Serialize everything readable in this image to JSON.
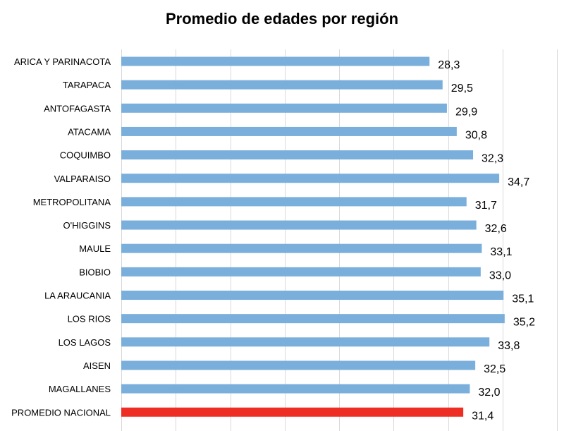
{
  "chart_data": {
    "type": "bar",
    "orientation": "horizontal",
    "title": "Promedio de edades por región",
    "categories": [
      "ARICA Y PARINACOTA",
      "TARAPACA",
      "ANTOFAGASTA",
      "ATACAMA",
      "COQUIMBO",
      "VALPARAISO",
      "METROPOLITANA",
      "O'HIGGINS",
      "MAULE",
      "BIOBIO",
      "LA ARAUCANIA",
      "LOS RIOS",
      "LOS LAGOS",
      "AISEN",
      "MAGALLANES",
      "PROMEDIO NACIONAL"
    ],
    "values": [
      28.3,
      29.5,
      29.9,
      30.8,
      32.3,
      34.7,
      31.7,
      32.6,
      33.1,
      33.0,
      35.1,
      35.2,
      33.8,
      32.5,
      32.0,
      31.4
    ],
    "value_labels": [
      "28,3",
      "29,5",
      "29,9",
      "30,8",
      "32,3",
      "34,7",
      "31,7",
      "32,6",
      "33,1",
      "33,0",
      "35,1",
      "35,2",
      "33,8",
      "32,5",
      "32,0",
      "31,4"
    ],
    "xlim": [
      0,
      40
    ],
    "grid": true,
    "legend": "none",
    "colors": {
      "bar": "#7aafdc",
      "highlight": "#ee2e24",
      "grid": "#d9d9d9"
    },
    "highlight_category": "PROMEDIO NACIONAL"
  }
}
